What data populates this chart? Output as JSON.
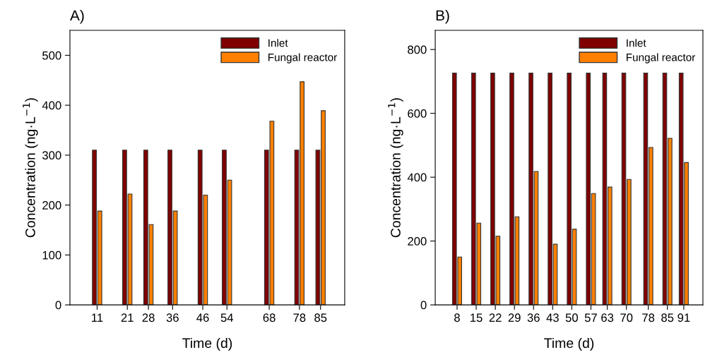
{
  "chart_data": [
    {
      "type": "bar",
      "title": "A)",
      "xlabel": "Time (d)",
      "ylabel": "Concentration (ng·L$^{−1}$)",
      "x": [
        11,
        21,
        28,
        36,
        46,
        54,
        68,
        78,
        85
      ],
      "series": [
        {
          "name": "Inlet",
          "color": "#800000",
          "values": [
            310,
            310,
            310,
            310,
            310,
            310,
            310,
            310,
            310
          ]
        },
        {
          "name": "Fungal reactor",
          "color": "#ff8000",
          "values": [
            188,
            222,
            161,
            188,
            220,
            250,
            368,
            447,
            389
          ]
        }
      ],
      "xlim": [
        2,
        93
      ],
      "xticks": [
        11,
        21,
        28,
        36,
        46,
        54,
        68,
        78,
        85
      ],
      "ylim": [
        0,
        550
      ],
      "yticks": [
        0,
        100,
        200,
        300,
        400,
        500
      ],
      "legend": "top right",
      "grid": false
    },
    {
      "type": "bar",
      "title": "B)",
      "xlabel": "Time (d)",
      "ylabel": "Concentration (ng·L$^{−1}$)",
      "x": [
        8,
        15,
        22,
        29,
        36,
        43,
        50,
        57,
        63,
        70,
        78,
        85,
        91
      ],
      "series": [
        {
          "name": "Inlet",
          "color": "#800000",
          "values": [
            726,
            726,
            726,
            726,
            726,
            726,
            726,
            726,
            726,
            726,
            726,
            726,
            726
          ]
        },
        {
          "name": "Fungal reactor",
          "color": "#ff8000",
          "values": [
            150,
            256,
            215,
            276,
            418,
            190,
            237,
            349,
            369,
            393,
            493,
            522,
            446
          ]
        }
      ],
      "xlim": [
        0,
        98
      ],
      "xticks": [
        8,
        15,
        22,
        29,
        36,
        43,
        50,
        57,
        63,
        70,
        78,
        85,
        91
      ],
      "ylim": [
        0,
        860
      ],
      "yticks": [
        0,
        200,
        400,
        600,
        800
      ],
      "legend": "top right",
      "grid": false
    }
  ]
}
